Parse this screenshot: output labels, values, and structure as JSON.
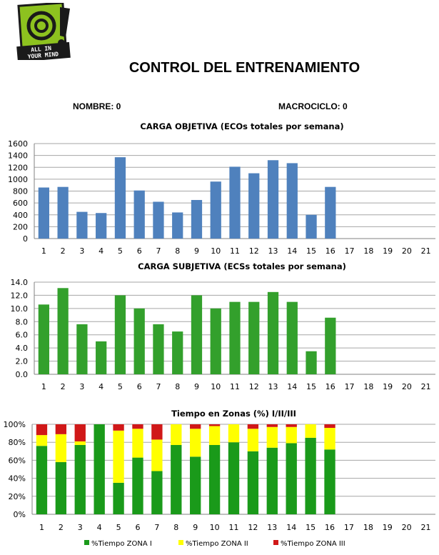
{
  "logo": {
    "line1": "ALL IN",
    "line2": "YOUR MIND"
  },
  "header": {
    "title": "CONTROL DEL ENTRENAMIENTO",
    "nombre_label": "NOMBRE:",
    "nombre_value": "0",
    "macrociclo_label": "MACROCICLO:",
    "macrociclo_value": "0"
  },
  "colors": {
    "blue": "#4f81bd",
    "green": "#33a02c",
    "zone1": "#1a9a1a",
    "zone2": "#ffff00",
    "zone3": "#d01818",
    "grid": "#a6a6a6"
  },
  "chart_data": [
    {
      "type": "bar",
      "title": "CARGA OBJETIVA (ECOs totales por semana)",
      "categories": [
        "1",
        "2",
        "3",
        "4",
        "5",
        "6",
        "7",
        "8",
        "9",
        "10",
        "11",
        "12",
        "13",
        "14",
        "15",
        "16",
        "17",
        "18",
        "19",
        "20",
        "21"
      ],
      "values": [
        860,
        870,
        450,
        430,
        1370,
        810,
        620,
        440,
        650,
        960,
        1210,
        1100,
        1320,
        1270,
        400,
        870,
        null,
        null,
        null,
        null,
        null
      ],
      "ylim": [
        0,
        1600
      ],
      "yticks": [
        "0",
        "200",
        "400",
        "600",
        "800",
        "1000",
        "1200",
        "1400",
        "1600"
      ],
      "color": "#4f81bd"
    },
    {
      "type": "bar",
      "title": "CARGA SUBJETIVA (ECSs totales por semana)",
      "categories": [
        "1",
        "2",
        "3",
        "4",
        "5",
        "6",
        "7",
        "8",
        "9",
        "10",
        "11",
        "12",
        "13",
        "14",
        "15",
        "16",
        "17",
        "18",
        "19",
        "20",
        "21"
      ],
      "values": [
        10.6,
        13.1,
        7.6,
        5.0,
        12.0,
        10.0,
        7.6,
        6.5,
        12.0,
        10.0,
        11.0,
        11.0,
        12.5,
        11.0,
        3.5,
        8.6,
        null,
        null,
        null,
        null,
        null
      ],
      "ylim": [
        0,
        14
      ],
      "yticks": [
        "0.0",
        "2.0",
        "4.0",
        "6.0",
        "8.0",
        "10.0",
        "12.0",
        "14.0"
      ],
      "color": "#33a02c"
    },
    {
      "type": "bar",
      "stacked": true,
      "title": "Tiempo en Zonas (%) I/II/III",
      "categories": [
        "1",
        "2",
        "3",
        "4",
        "5",
        "6",
        "7",
        "8",
        "9",
        "10",
        "11",
        "12",
        "13",
        "14",
        "15",
        "16",
        "17",
        "18",
        "19",
        "20",
        "21"
      ],
      "ylim": [
        0,
        100
      ],
      "yticks": [
        "0%",
        "20%",
        "40%",
        "60%",
        "80%",
        "100%"
      ],
      "series": [
        {
          "name": "%Tiempo ZONA I",
          "color": "#1a9a1a",
          "values": [
            76,
            58,
            77,
            100,
            35,
            63,
            48,
            77,
            64,
            77,
            80,
            70,
            74,
            79,
            85,
            72,
            null,
            null,
            null,
            null,
            null
          ]
        },
        {
          "name": "%Tiempo ZONA II",
          "color": "#ffff00",
          "values": [
            12,
            31,
            4,
            0,
            58,
            32,
            35,
            23,
            31,
            21,
            20,
            25,
            23,
            18,
            15,
            24,
            null,
            null,
            null,
            null,
            null
          ]
        },
        {
          "name": "%Tiempo ZONA III",
          "color": "#d01818",
          "values": [
            12,
            11,
            19,
            0,
            7,
            5,
            17,
            0,
            5,
            2,
            0,
            5,
            3,
            3,
            0,
            4,
            null,
            null,
            null,
            null,
            null
          ]
        }
      ]
    }
  ]
}
